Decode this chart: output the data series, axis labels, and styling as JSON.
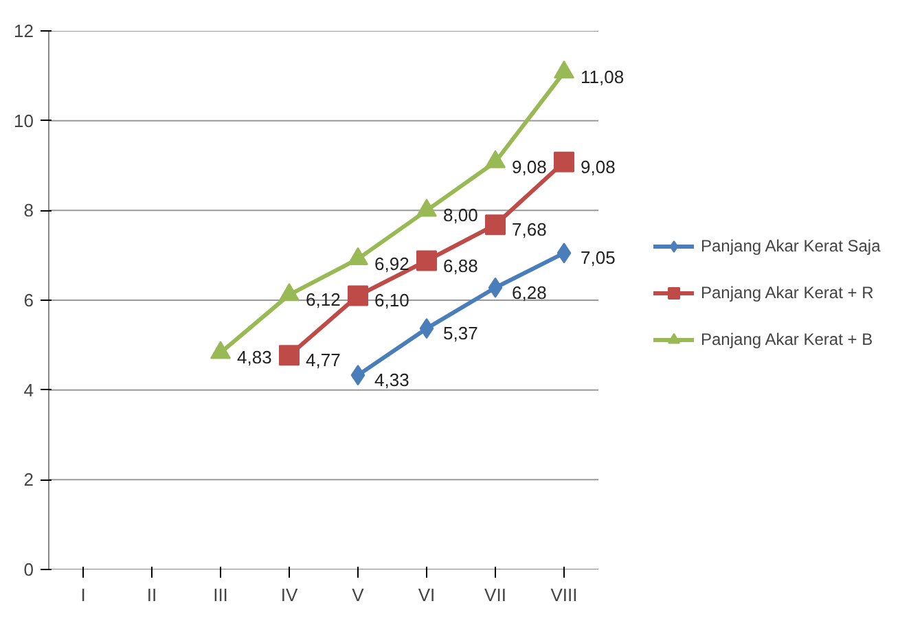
{
  "chart_data": {
    "type": "line",
    "categories": [
      "I",
      "II",
      "III",
      "IV",
      "V",
      "VI",
      "VII",
      "VIII"
    ],
    "series": [
      {
        "name": "Panjang Akar Kerat Saja",
        "color": "#4a7ebb",
        "marker": "diamond",
        "values": [
          null,
          null,
          null,
          null,
          4.33,
          5.37,
          6.28,
          7.05
        ],
        "value_labels": [
          null,
          null,
          null,
          null,
          "4,33",
          "5,37",
          "6,28",
          "7,05"
        ]
      },
      {
        "name": "Panjang Akar Kerat + R",
        "color": "#be4b48",
        "marker": "square",
        "values": [
          null,
          null,
          null,
          4.77,
          6.1,
          6.88,
          7.68,
          9.08
        ],
        "value_labels": [
          null,
          null,
          null,
          "4,77",
          "6,10",
          "6,88",
          "7,68",
          "9,08"
        ]
      },
      {
        "name": "Panjang Akar Kerat + B",
        "color": "#98b954",
        "marker": "triangle",
        "values": [
          null,
          null,
          4.83,
          6.12,
          6.92,
          8.0,
          9.08,
          11.08
        ],
        "value_labels": [
          null,
          null,
          "4,83",
          "6,12",
          "6,92",
          "8,00",
          "9,08",
          "11,08"
        ]
      }
    ],
    "ylim": [
      0,
      12
    ],
    "yticks": [
      0,
      2,
      4,
      6,
      8,
      10,
      12
    ],
    "grid": "y",
    "legend": "right",
    "line_style": "solid"
  }
}
